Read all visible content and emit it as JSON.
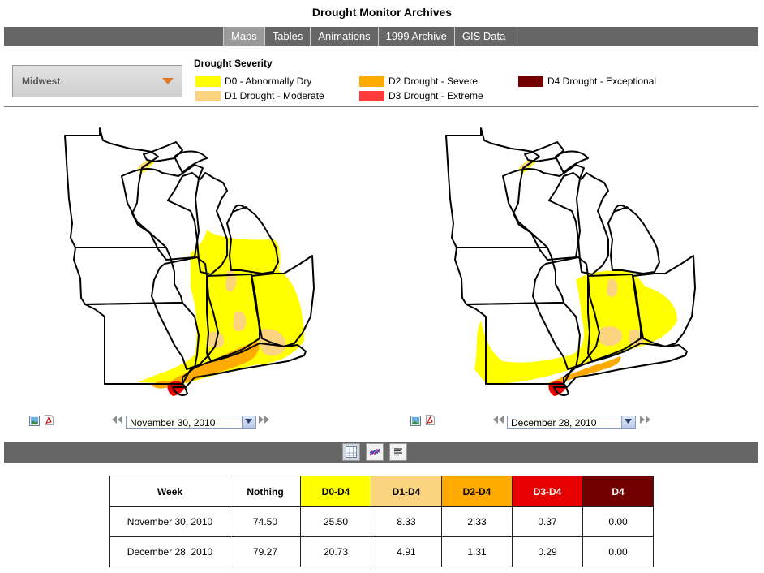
{
  "page": {
    "title": "Drought Monitor Archives"
  },
  "nav": {
    "tabs": [
      {
        "label": "Maps",
        "active": true
      },
      {
        "label": "Tables",
        "active": false
      },
      {
        "label": "Animations",
        "active": false
      },
      {
        "label": "1999 Archive",
        "active": false
      },
      {
        "label": "GIS Data",
        "active": false
      }
    ]
  },
  "region": {
    "selected": "Midwest"
  },
  "legend": {
    "title": "Drought Severity",
    "items": [
      {
        "code": "D0",
        "label": "D0 - Abnormally Dry",
        "color": "#ffff00"
      },
      {
        "code": "D1",
        "label": "D1 Drought - Moderate",
        "color": "#fcd37f"
      },
      {
        "code": "D2",
        "label": "D2 Drought - Severe",
        "color": "#ffaa00"
      },
      {
        "code": "D3",
        "label": "D3 Drought - Extreme",
        "color": "#ff3b3b"
      },
      {
        "code": "D4",
        "label": "D4 Drought - Exceptional",
        "color": "#730000"
      }
    ]
  },
  "maps": [
    {
      "date": "November 30, 2010"
    },
    {
      "date": "December 28, 2010"
    }
  ],
  "icons": {
    "image": "image-icon",
    "pdf": "pdf-icon",
    "prev": "rewind-icon",
    "next": "fast-forward-icon",
    "table_view": "table-icon",
    "chart_view": "chart-icon",
    "text_view": "text-icon"
  },
  "table": {
    "headers": [
      "Week",
      "Nothing",
      "D0-D4",
      "D1-D4",
      "D2-D4",
      "D3-D4",
      "D4"
    ],
    "header_colors": [
      "#ffffff",
      "#ffffff",
      "#ffff00",
      "#fcd37f",
      "#ffaa00",
      "#e60000",
      "#730000"
    ],
    "header_text_colors": [
      "#000000",
      "#000000",
      "#000000",
      "#000000",
      "#000000",
      "#ffffff",
      "#ffffff"
    ],
    "rows": [
      [
        "November 30, 2010",
        "74.50",
        "25.50",
        "8.33",
        "2.33",
        "0.37",
        "0.00"
      ],
      [
        "December 28, 2010",
        "79.27",
        "20.73",
        "4.91",
        "1.31",
        "0.29",
        "0.00"
      ]
    ]
  }
}
